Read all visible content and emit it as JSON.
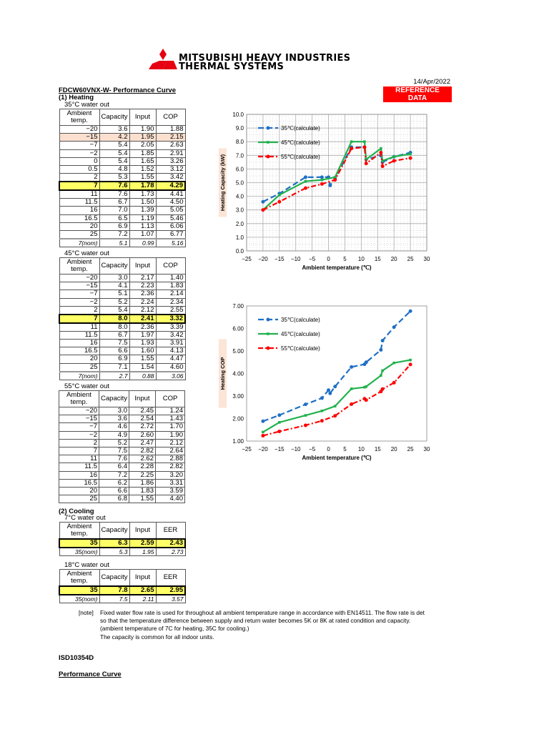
{
  "header": {
    "company_line1": "MITSUBISHI HEAVY INDUSTRIES",
    "company_line2": "THERMAL SYSTEMS",
    "logo_color": "#e60012",
    "date": "14/Apr/2022",
    "badge": "REFERENCE DATA",
    "badge_color": "#ff0000"
  },
  "doc": {
    "title": "FDCW60VNX-W- Performance Curve",
    "heating_label": "(1) Heating",
    "cooling_label": "(2) Cooling",
    "footer_code": "ISD10354D",
    "footer_title": "Performance Curve"
  },
  "tables": [
    {
      "caption": "35°C water out",
      "headers": [
        "Ambient temp.",
        "Capacity",
        "Input",
        "COP"
      ],
      "rows": [
        [
          "−20",
          "3.6",
          "1.90",
          "1.88"
        ],
        [
          "−15",
          "4.2",
          "1.95",
          "2.15"
        ],
        [
          "−7",
          "5.4",
          "2.05",
          "2.63"
        ],
        [
          "−2",
          "5.4",
          "1.85",
          "2.91"
        ],
        [
          "0",
          "5.4",
          "1.65",
          "3.26"
        ],
        [
          "0.5",
          "4.8",
          "1.52",
          "3.12"
        ],
        [
          "2",
          "5.3",
          "1.55",
          "3.42"
        ],
        [
          "7",
          "7.6",
          "1.78",
          "4.29"
        ],
        [
          "11",
          "7.6",
          "1.73",
          "4.41"
        ],
        [
          "11.5",
          "6.7",
          "1.50",
          "4.50"
        ],
        [
          "16",
          "7.0",
          "1.39",
          "5.05"
        ],
        [
          "16.5",
          "6.5",
          "1.19",
          "5.46"
        ],
        [
          "20",
          "6.9",
          "1.13",
          "6.06"
        ],
        [
          "25",
          "7.2",
          "1.07",
          "6.77"
        ]
      ],
      "highlight_row": "7",
      "shaded_row": "−15",
      "nominal": [
        "7(nom)",
        "5.1",
        "0.99",
        "5.16"
      ]
    },
    {
      "caption": "45°C water out",
      "headers": [
        "Ambient temp.",
        "Capacity",
        "Input",
        "COP"
      ],
      "rows": [
        [
          "−20",
          "3.0",
          "2.17",
          "1.40"
        ],
        [
          "−15",
          "4.1",
          "2.23",
          "1.83"
        ],
        [
          "−7",
          "5.1",
          "2.36",
          "2.14"
        ],
        [
          "−2",
          "5.2",
          "2.24",
          "2.34"
        ],
        [
          "2",
          "5.4",
          "2.12",
          "2.55"
        ],
        [
          "7",
          "8.0",
          "2.41",
          "3.32"
        ],
        [
          "11",
          "8.0",
          "2.36",
          "3.39"
        ],
        [
          "11.5",
          "6.7",
          "1.97",
          "3.42"
        ],
        [
          "16",
          "7.5",
          "1.93",
          "3.91"
        ],
        [
          "16.5",
          "6.6",
          "1.60",
          "4.13"
        ],
        [
          "20",
          "6.9",
          "1.55",
          "4.47"
        ],
        [
          "25",
          "7.1",
          "1.54",
          "4.60"
        ]
      ],
      "highlight_row": "7",
      "nominal": [
        "7(nom)",
        "2.7",
        "0.88",
        "3.06"
      ]
    },
    {
      "caption": "55°C water out",
      "headers": [
        "Ambient temp.",
        "Capacity",
        "Input",
        "COP"
      ],
      "rows": [
        [
          "−20",
          "3.0",
          "2.45",
          "1.24"
        ],
        [
          "−15",
          "3.6",
          "2.54",
          "1.43"
        ],
        [
          "−7",
          "4.6",
          "2.72",
          "1.70"
        ],
        [
          "−2",
          "4.9",
          "2.60",
          "1.90"
        ],
        [
          "2",
          "5.2",
          "2.47",
          "2.12"
        ],
        [
          "7",
          "7.5",
          "2.82",
          "2.64"
        ],
        [
          "11",
          "7.6",
          "2.62",
          "2.88"
        ],
        [
          "11.5",
          "6.4",
          "2.28",
          "2.82"
        ],
        [
          "16",
          "7.2",
          "2.25",
          "3.20"
        ],
        [
          "16.5",
          "6.2",
          "1.86",
          "3.31"
        ],
        [
          "20",
          "6.6",
          "1.83",
          "3.59"
        ],
        [
          "25",
          "6.8",
          "1.55",
          "4.40"
        ]
      ]
    },
    {
      "caption": "7°C water out",
      "headers": [
        "Ambient temp.",
        "Capacity",
        "Input",
        "EER"
      ],
      "rows": [
        [
          "35",
          "6.3",
          "2.59",
          "2.43"
        ]
      ],
      "highlight_row": "35",
      "nominal": [
        "35(nom)",
        "5.3",
        "1.95",
        "2.73"
      ]
    },
    {
      "caption": "18°C water out",
      "headers": [
        "Ambient temp.",
        "Capacity",
        "Input",
        "EER"
      ],
      "rows": [
        [
          "35",
          "7.8",
          "2.65",
          "2.95"
        ]
      ],
      "highlight_row": "35",
      "nominal": [
        "35(nom)",
        "7.5",
        "2.11",
        "3.57"
      ]
    }
  ],
  "note": {
    "tag": "[note]",
    "lines": [
      "Fixed water flow rate is used for throughout all ambient temperature range in accordance with EN14511. The flow rate is det",
      "so that the temperature difference between supply and return water becomes 5K or 8K at rated condition and capacity.",
      "(ambient temperature of 7C for heating, 35C for cooling.)",
      "The capacity is common for all indoor units."
    ]
  },
  "chart_data": [
    {
      "type": "line",
      "xlabel": "Ambient temperature (℃)",
      "ylabel": "Heating Capacity (kW)",
      "xlim": [
        -25,
        30
      ],
      "xticks": [
        -25,
        -20,
        -15,
        -10,
        -5,
        0,
        5,
        10,
        15,
        20,
        25,
        30
      ],
      "ylim": [
        0,
        10
      ],
      "yticks": [
        0,
        1,
        2,
        3,
        4,
        5,
        6,
        7,
        8,
        9,
        10
      ],
      "grid": true,
      "legend": "top-left",
      "series": [
        {
          "name": "35℃(calculate)",
          "color": "#1f6fc4",
          "style": "dashed",
          "x": [
            -20,
            -15,
            -7,
            -2,
            0,
            0.5,
            2,
            7,
            11,
            11.5,
            16,
            16.5,
            20,
            25
          ],
          "y": [
            3.6,
            4.2,
            5.4,
            5.4,
            5.4,
            4.8,
            5.3,
            7.6,
            7.6,
            6.7,
            7.0,
            6.5,
            6.9,
            7.2
          ]
        },
        {
          "name": "45℃(calculate)",
          "color": "#22b14c",
          "style": "solid",
          "x": [
            -20,
            -15,
            -7,
            -2,
            2,
            7,
            11,
            11.5,
            16,
            16.5,
            20,
            25
          ],
          "y": [
            3.0,
            4.1,
            5.1,
            5.2,
            5.4,
            8.0,
            8.0,
            6.7,
            7.5,
            6.6,
            6.9,
            7.1
          ]
        },
        {
          "name": "55℃(calculate)",
          "color": "#ff0000",
          "style": "dashdot",
          "x": [
            -20,
            -15,
            -7,
            -2,
            2,
            7,
            11,
            11.5,
            16,
            16.5,
            20,
            25
          ],
          "y": [
            3.0,
            3.6,
            4.6,
            4.9,
            5.2,
            7.5,
            7.6,
            6.4,
            7.2,
            6.2,
            6.6,
            6.8
          ]
        }
      ]
    },
    {
      "type": "line",
      "xlabel": "Ambient temperature (℃)",
      "ylabel": "Heating COP",
      "xlim": [
        -25,
        30
      ],
      "xticks": [
        -25,
        -20,
        -15,
        -10,
        -5,
        0,
        5,
        10,
        15,
        20,
        25,
        30
      ],
      "ylim": [
        1,
        7
      ],
      "yticks": [
        1,
        2,
        3,
        4,
        5,
        6,
        7
      ],
      "grid": false,
      "legend": "top-left",
      "series": [
        {
          "name": "35℃(calculate)",
          "color": "#1f6fc4",
          "style": "dashed",
          "x": [
            -20,
            -15,
            -7,
            -2,
            0,
            0.5,
            2,
            7,
            11,
            11.5,
            16,
            16.5,
            20,
            25
          ],
          "y": [
            1.88,
            2.15,
            2.63,
            2.91,
            3.26,
            3.12,
            3.42,
            4.29,
            4.41,
            4.5,
            5.05,
            5.46,
            6.06,
            6.77
          ]
        },
        {
          "name": "45℃(calculate)",
          "color": "#22b14c",
          "style": "solid",
          "x": [
            -20,
            -15,
            -7,
            -2,
            2,
            7,
            11,
            11.5,
            16,
            16.5,
            20,
            25
          ],
          "y": [
            1.4,
            1.83,
            2.14,
            2.34,
            2.55,
            3.32,
            3.39,
            3.42,
            3.91,
            4.13,
            4.47,
            4.6
          ]
        },
        {
          "name": "55℃(calculate)",
          "color": "#ff0000",
          "style": "dashdot",
          "x": [
            -20,
            -15,
            -7,
            -2,
            2,
            7,
            11,
            11.5,
            16,
            16.5,
            20,
            25
          ],
          "y": [
            1.24,
            1.43,
            1.7,
            1.9,
            2.12,
            2.64,
            2.88,
            2.82,
            3.2,
            3.31,
            3.59,
            4.4
          ]
        }
      ]
    }
  ]
}
